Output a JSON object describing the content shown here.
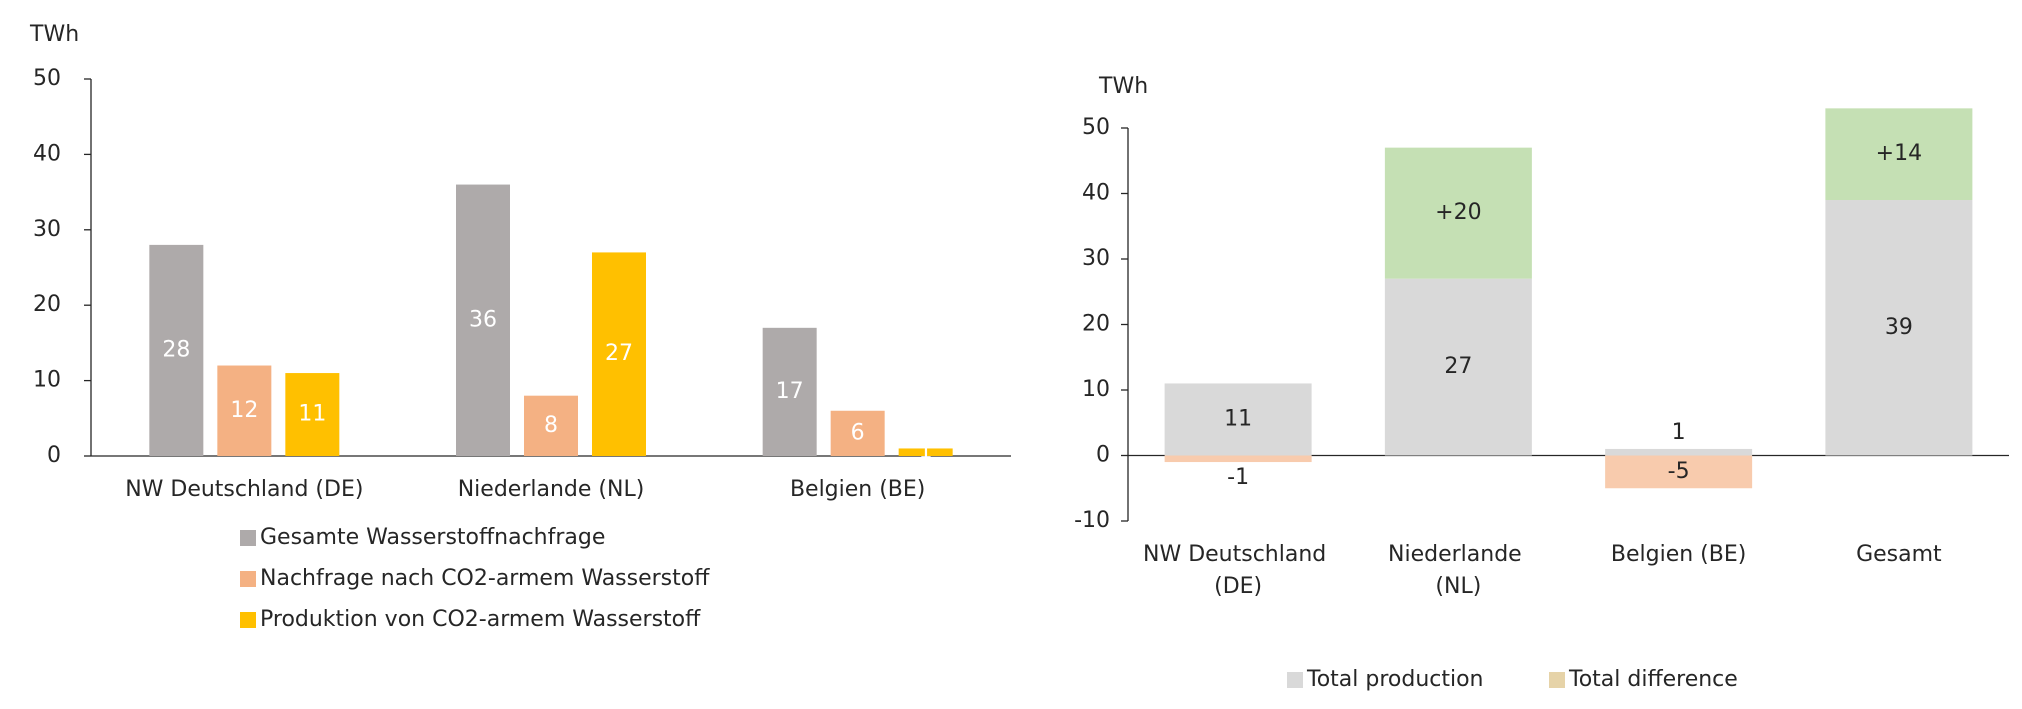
{
  "chart_data": [
    {
      "type": "bar",
      "y_label": "TWh",
      "categories": [
        "NW Deutschland (DE)",
        "Niederlande (NL)",
        "Belgien (BE)"
      ],
      "series": [
        {
          "name": "Gesamte Wasserstoffnachfrage",
          "color": "#aeaaaa",
          "values": [
            28,
            36,
            17
          ]
        },
        {
          "name": "Nachfrage nach CO2-armem Wasserstoff",
          "color": "#f4b183",
          "values": [
            12,
            8,
            6
          ]
        },
        {
          "name": "Produktion von CO2-armem Wasserstoff",
          "color": "#ffc000",
          "values": [
            11,
            27,
            1
          ]
        }
      ],
      "ylim": [
        0,
        50
      ],
      "yticks": [
        0,
        10,
        20,
        30,
        40,
        50
      ],
      "legend": "bottom"
    },
    {
      "type": "stacked_bar",
      "y_label": "TWh",
      "categories": [
        "NW Deutschland (DE)",
        "Niederlande (NL)",
        "Belgien (BE)",
        "Gesamt"
      ],
      "series": [
        {
          "name": "Total production",
          "color": "#d9d9d9",
          "values": [
            11,
            27,
            1,
            39
          ]
        },
        {
          "name": "Total difference",
          "color": "#e6d3a8",
          "colors": [
            "#f8cbad",
            "#c5e0b4",
            "#f8cbad",
            "#c5e0b4"
          ],
          "values": [
            -1,
            20,
            -5,
            14
          ],
          "value_labels": [
            "-1",
            "+20",
            "-5",
            "+14"
          ]
        }
      ],
      "ylim": [
        -10,
        50
      ],
      "yticks": [
        -10,
        0,
        10,
        20,
        30,
        40,
        50
      ],
      "legend": "bottom"
    }
  ]
}
